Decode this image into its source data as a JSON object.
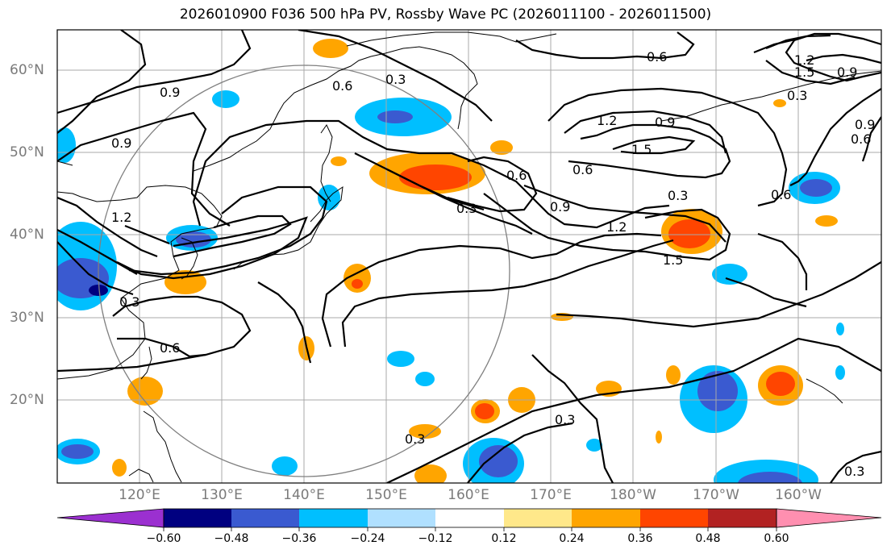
{
  "title": "2026010900 F036 500 hPa PV, Rossby Wave PC (2026011100 - 2026011500)",
  "lat_labels": [
    "60°N",
    "50°N",
    "40°N",
    "30°N",
    "20°N"
  ],
  "lon_labels": [
    "120°E",
    "130°E",
    "140°E",
    "150°E",
    "160°E",
    "170°E",
    "180°W",
    "170°W",
    "160°W"
  ],
  "colorbar": {
    "colors": [
      "#9b30d0",
      "#000080",
      "#3a5ad0",
      "#00bfff",
      "#b0e0ff",
      "#ffffff",
      "#ffe88a",
      "#ffa500",
      "#ff4500",
      "#b22222",
      "#ff8fb0"
    ],
    "tick_labels": [
      "−0.60",
      "−0.48",
      "−0.36",
      "−0.24",
      "−0.12",
      "0.12",
      "0.24",
      "0.36",
      "0.48",
      "0.60"
    ]
  },
  "contour_labels": [
    "0.9",
    "0.6",
    "0.3",
    "0.6",
    "0.9",
    "1.2",
    "0.3",
    "0.6",
    "0.9",
    "1.2",
    "1.5",
    "0.6",
    "0.3",
    "0.9",
    "1.2",
    "1.5",
    "0.3",
    "0.6",
    "0.9",
    "0.3",
    "0.3",
    "0.3",
    "0.6",
    "0.3",
    "0.6",
    "1.2",
    "1.5",
    "0.9"
  ]
}
